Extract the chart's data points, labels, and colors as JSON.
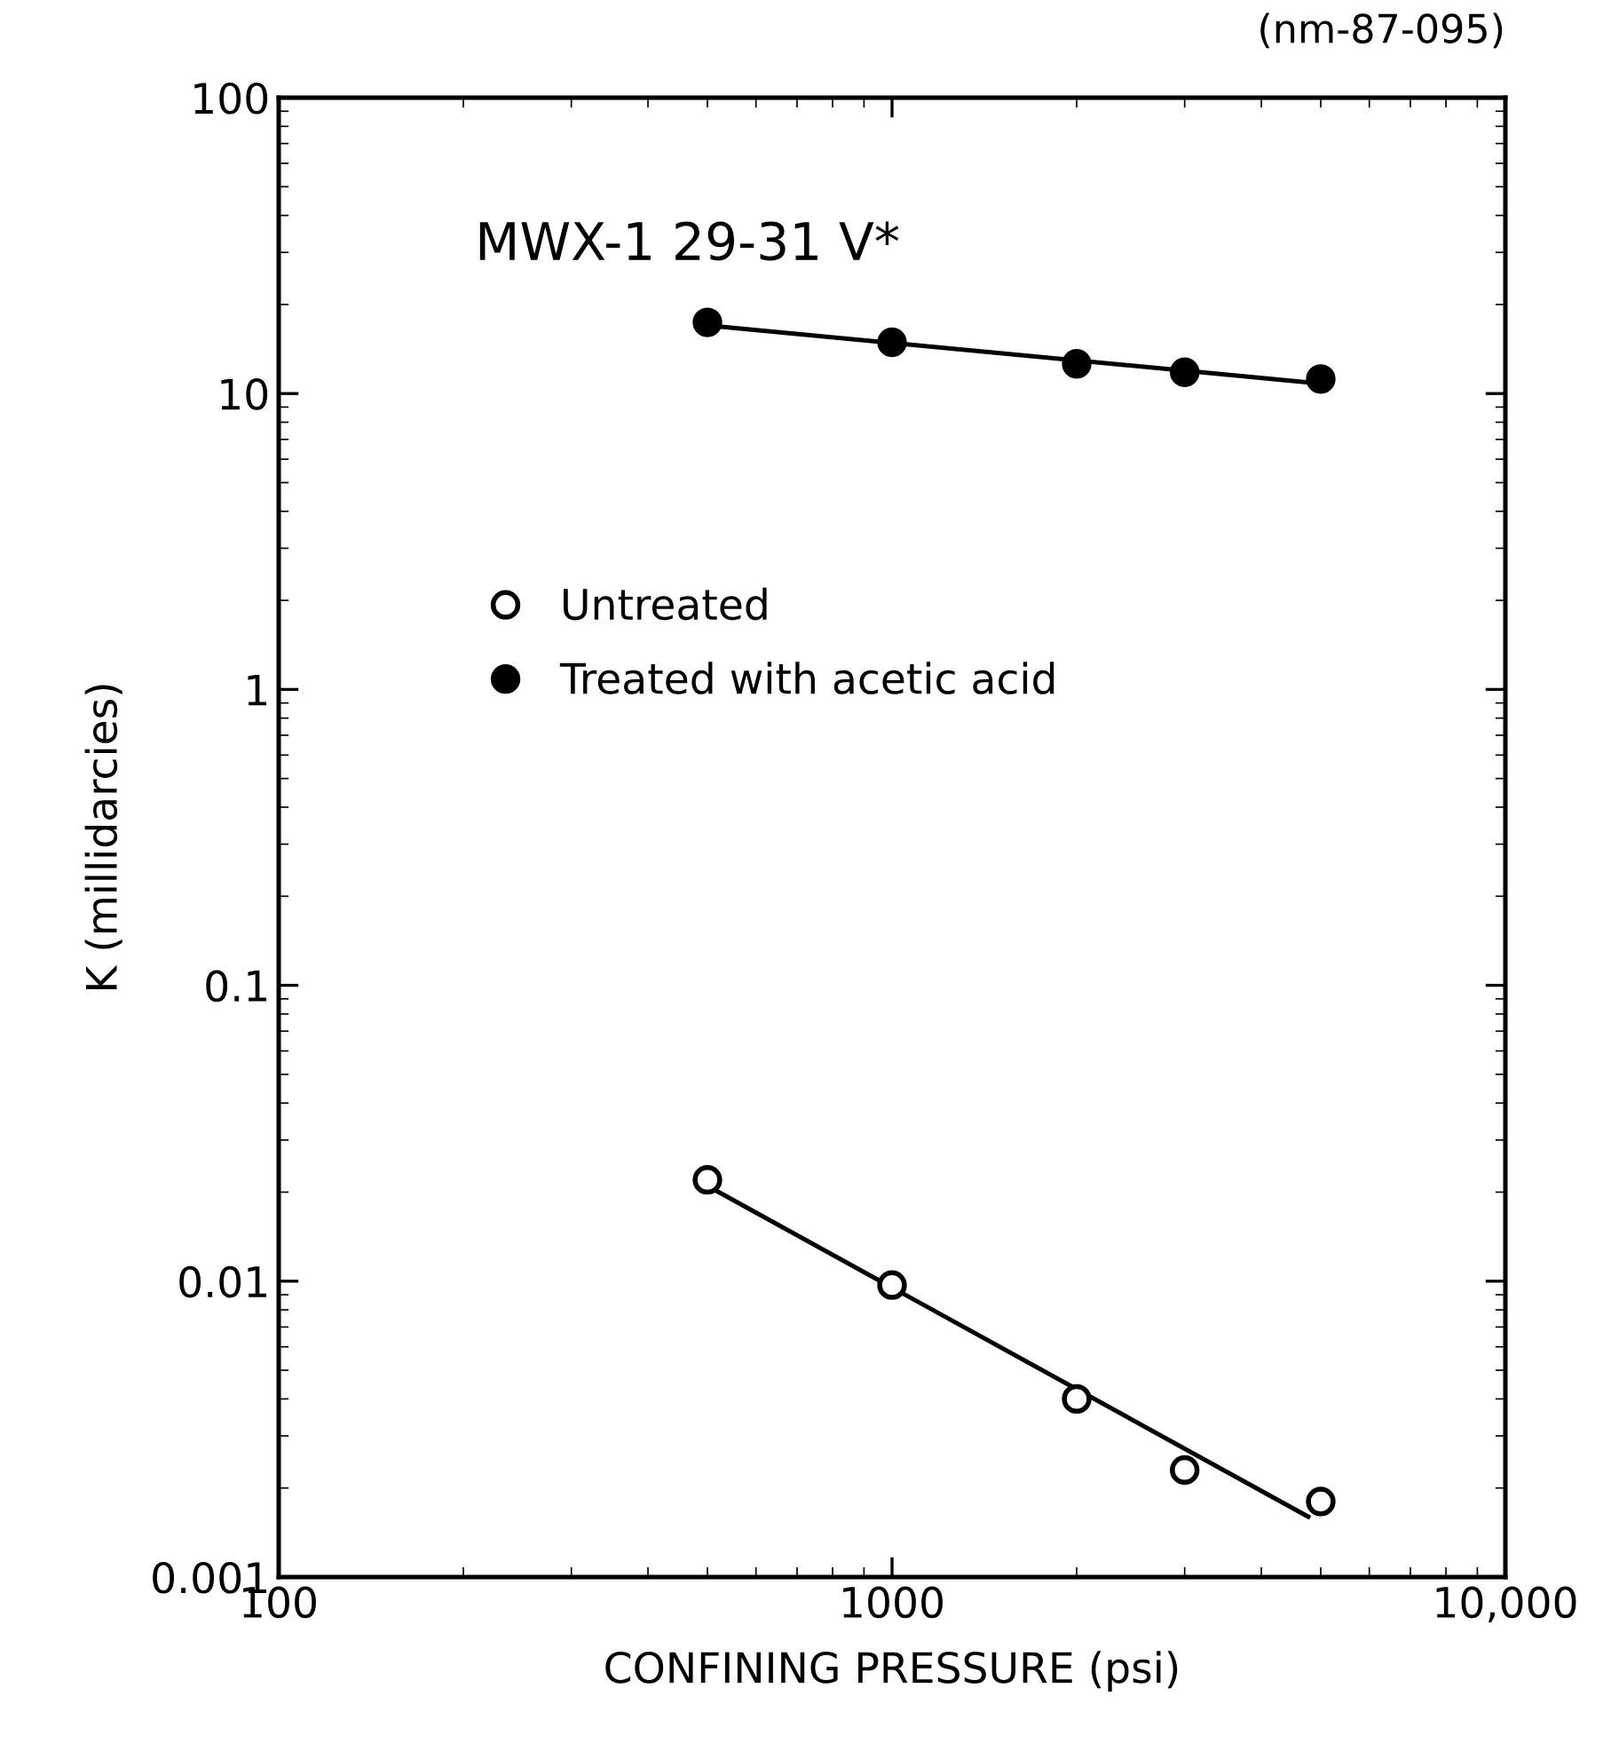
{
  "chart_data": {
    "type": "scatter",
    "xlabel": "CONFINING PRESSURE (psi)",
    "ylabel": "K (millidarcies)",
    "annotations": [
      "(nm-87-095)",
      "MWX-1 29-31 V*"
    ],
    "log": "xy",
    "xlim": [
      100,
      10000
    ],
    "ylim": [
      0.001,
      100
    ],
    "xticks": [
      100,
      1000,
      {
        "value": 10000,
        "label": "10,000"
      }
    ],
    "yticks": [
      {
        "value": 0.001,
        "label": "0.001"
      },
      {
        "value": 0.01,
        "label": "0.01"
      },
      {
        "value": 0.1,
        "label": "0.1"
      },
      1,
      10,
      100
    ],
    "grid": false,
    "legend": "left",
    "series": [
      {
        "name": "Untreated",
        "marker": "circle",
        "color": "#000000",
        "x": [
          500,
          1000,
          2000,
          3000,
          5000
        ],
        "values": [
          0.022,
          0.0097,
          0.004,
          0.0023,
          0.0018
        ]
      },
      {
        "name": "Treated with acetic acid",
        "marker": "circle",
        "color": "#000000",
        "x": [
          500,
          1000,
          2000,
          3000,
          5000
        ],
        "values": [
          17.4,
          14.9,
          12.6,
          11.8,
          11.2
        ]
      },
      {
        "type": "line",
        "line_style": "solid",
        "color": "#000000",
        "x": [
          500,
          4770
        ],
        "values": [
          0.021,
          0.0016
        ]
      },
      {
        "type": "line",
        "line_style": "solid",
        "color": "#000000",
        "x": [
          500,
          5000
        ],
        "values": [
          17,
          10.8
        ]
      }
    ]
  }
}
